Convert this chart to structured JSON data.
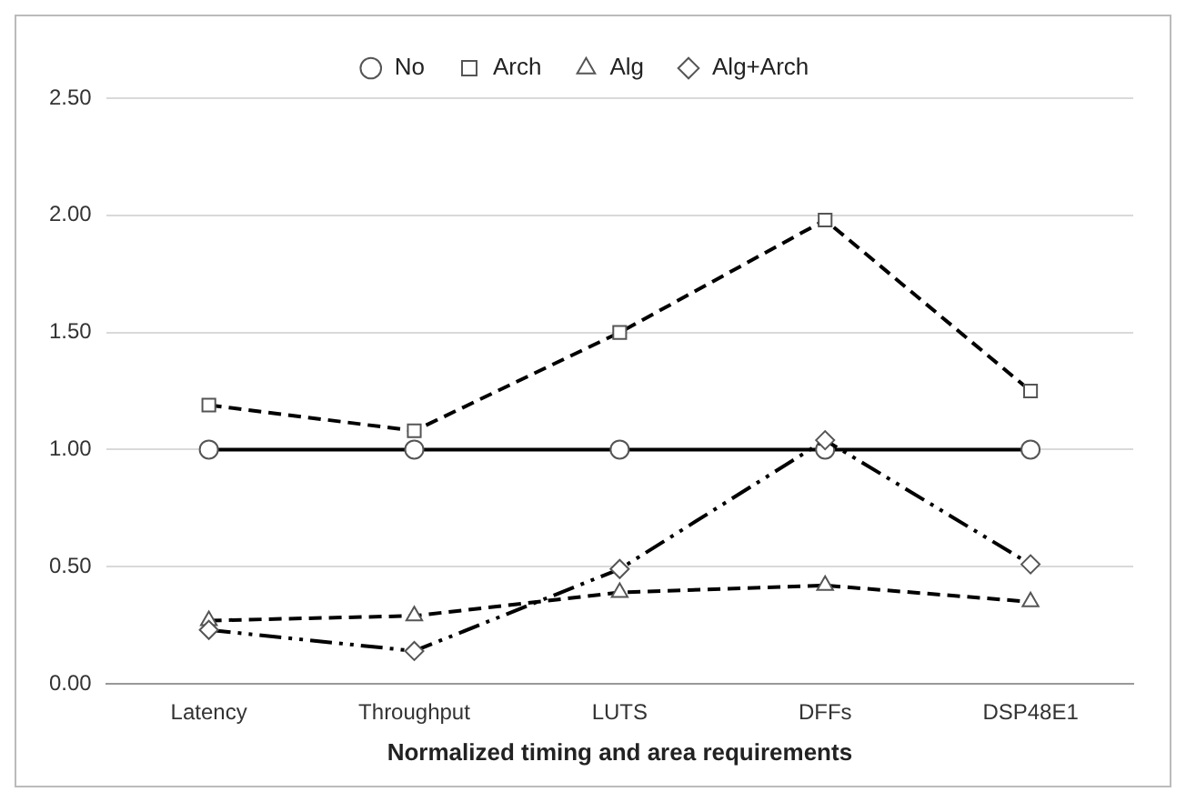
{
  "chart_data": {
    "type": "line",
    "xlabel": "Normalized timing and area requirements",
    "categories": [
      "Latency",
      "Throughput",
      "LUTS",
      "DFFs",
      "DSP48E1"
    ],
    "series": [
      {
        "name": "No",
        "color": "#000000",
        "values": [
          1.0,
          1.0,
          1.0,
          1.0,
          1.0
        ],
        "marker": "circle",
        "line_style": "solid"
      },
      {
        "name": "Arch",
        "color": "#000000",
        "values": [
          1.19,
          1.08,
          1.5,
          1.98,
          1.25
        ],
        "marker": "square",
        "line_style": "dashed"
      },
      {
        "name": "Alg",
        "color": "#000000",
        "values": [
          0.27,
          0.29,
          0.39,
          0.42,
          0.35
        ],
        "marker": "triangle",
        "line_style": "dashed"
      },
      {
        "name": "Alg+Arch",
        "color": "#000000",
        "values": [
          0.23,
          0.14,
          0.49,
          1.04,
          0.51
        ],
        "marker": "diamond",
        "line_style": "dotted"
      }
    ],
    "ylim": [
      0,
      2.5
    ],
    "yticks": [
      {
        "value": 0,
        "label": "0.00"
      },
      {
        "value": 0.5,
        "label": "0.50"
      },
      {
        "value": 1,
        "label": "1.00"
      },
      {
        "value": 1.5,
        "label": "1.50"
      },
      {
        "value": 2,
        "label": "2.00"
      },
      {
        "value": 2.5,
        "label": "2.50"
      }
    ],
    "grid": "y",
    "legend": "top"
  }
}
